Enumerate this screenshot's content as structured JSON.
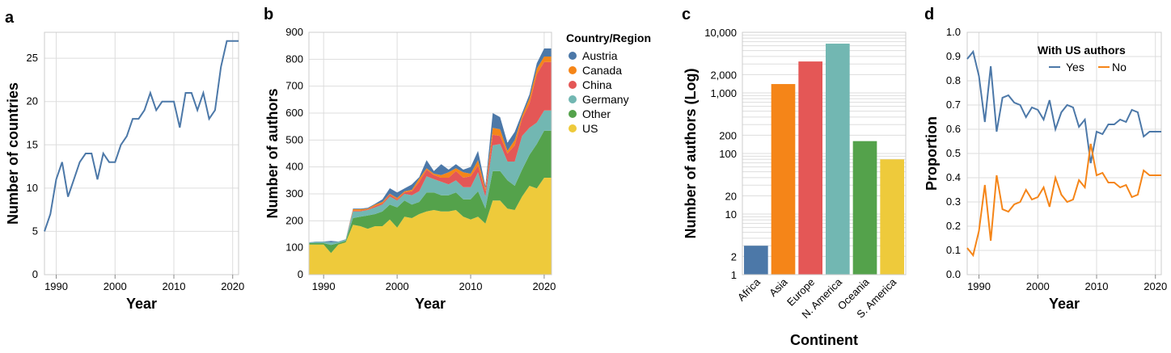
{
  "colors": {
    "Austria": "#4c78a8",
    "Canada": "#f58518",
    "China": "#e45756",
    "Germany": "#72b7b2",
    "Other": "#54a24b",
    "US": "#eeca3b",
    "Africa": "#4c78a8",
    "Asia": "#f58518",
    "Europe": "#e45756",
    "N. America": "#72b7b2",
    "Oceania": "#54a24b",
    "S. America": "#eeca3b",
    "Yes": "#4c78a8",
    "No": "#f58518"
  },
  "chart_data": [
    {
      "panel": "a",
      "type": "line",
      "xlabel": "Year",
      "ylabel": "Number of countries",
      "xlim": [
        1988,
        2021
      ],
      "ylim": [
        0,
        28
      ],
      "xticks": [
        1990,
        2000,
        2010,
        2020
      ],
      "yticks": [
        0,
        5,
        10,
        15,
        20,
        25
      ],
      "x": [
        1988,
        1989,
        1990,
        1991,
        1992,
        1993,
        1994,
        1995,
        1996,
        1997,
        1998,
        1999,
        2000,
        2001,
        2002,
        2003,
        2004,
        2005,
        2006,
        2007,
        2008,
        2009,
        2010,
        2011,
        2012,
        2013,
        2014,
        2015,
        2016,
        2017,
        2018,
        2019,
        2020,
        2021
      ],
      "values": [
        5,
        7,
        11,
        13,
        9,
        11,
        13,
        14,
        14,
        11,
        14,
        13,
        13,
        15,
        16,
        18,
        18,
        19,
        21,
        19,
        20,
        20,
        20,
        17,
        21,
        21,
        19,
        21,
        18,
        19,
        24,
        27,
        27,
        27
      ]
    },
    {
      "panel": "b",
      "type": "area",
      "stacked": true,
      "xlabel": "Year",
      "ylabel": "Number of authors",
      "xlim": [
        1988,
        2021
      ],
      "ylim": [
        0,
        900
      ],
      "xticks": [
        1990,
        2000,
        2010,
        2020
      ],
      "yticks": [
        0,
        100,
        200,
        300,
        400,
        500,
        600,
        700,
        800,
        900
      ],
      "legend_title": "Country/Region",
      "legend_position": "top-right",
      "x": [
        1988,
        1989,
        1990,
        1991,
        1992,
        1993,
        1994,
        1995,
        1996,
        1997,
        1998,
        1999,
        2000,
        2001,
        2002,
        2003,
        2004,
        2005,
        2006,
        2007,
        2008,
        2009,
        2010,
        2011,
        2012,
        2013,
        2014,
        2015,
        2016,
        2017,
        2018,
        2019,
        2020,
        2021
      ],
      "series": [
        {
          "name": "US",
          "values": [
            112,
            112,
            112,
            80,
            112,
            120,
            185,
            180,
            170,
            180,
            180,
            205,
            175,
            215,
            210,
            225,
            235,
            240,
            235,
            235,
            240,
            215,
            205,
            215,
            190,
            275,
            275,
            245,
            240,
            290,
            330,
            320,
            360,
            360
          ]
        },
        {
          "name": "Other",
          "values": [
            5,
            5,
            5,
            30,
            5,
            5,
            25,
            35,
            50,
            45,
            55,
            55,
            75,
            60,
            50,
            45,
            70,
            65,
            60,
            60,
            65,
            65,
            75,
            95,
            55,
            110,
            110,
            105,
            90,
            100,
            115,
            165,
            175,
            175
          ]
        },
        {
          "name": "Germany",
          "values": [
            2,
            5,
            5,
            10,
            5,
            5,
            25,
            20,
            20,
            25,
            25,
            30,
            25,
            25,
            35,
            40,
            60,
            50,
            50,
            40,
            45,
            45,
            45,
            70,
            45,
            95,
            100,
            70,
            90,
            125,
            100,
            80,
            75,
            75
          ]
        },
        {
          "name": "China",
          "values": [
            0,
            0,
            0,
            0,
            0,
            0,
            3,
            3,
            2,
            5,
            5,
            8,
            5,
            5,
            15,
            35,
            25,
            15,
            15,
            25,
            35,
            35,
            40,
            25,
            20,
            40,
            30,
            30,
            60,
            65,
            90,
            180,
            180,
            180
          ]
        },
        {
          "name": "Canada",
          "values": [
            0,
            0,
            0,
            0,
            0,
            0,
            5,
            5,
            3,
            5,
            5,
            3,
            5,
            5,
            5,
            12,
            5,
            5,
            10,
            20,
            10,
            20,
            10,
            20,
            10,
            25,
            25,
            10,
            20,
            10,
            20,
            20,
            20,
            20
          ]
        },
        {
          "name": "Austria",
          "values": [
            1,
            1,
            1,
            5,
            1,
            1,
            2,
            2,
            3,
            3,
            10,
            20,
            20,
            10,
            20,
            5,
            30,
            10,
            40,
            10,
            15,
            10,
            25,
            35,
            10,
            55,
            45,
            30,
            30,
            10,
            15,
            20,
            30,
            30
          ]
        }
      ]
    },
    {
      "panel": "c",
      "type": "bar",
      "scale": "log",
      "xlabel": "Continent",
      "ylabel": "Number of authors (Log)",
      "ylim": [
        1,
        10000
      ],
      "ytick_labels": [
        "1",
        "2",
        "10",
        "20",
        "100",
        "200",
        "1,000",
        "2,000",
        "10,000"
      ],
      "categories": [
        "Africa",
        "Asia",
        "Europe",
        "N. America",
        "Oceania",
        "S. America"
      ],
      "values": [
        3,
        1400,
        3300,
        6500,
        160,
        80
      ]
    },
    {
      "panel": "d",
      "type": "line",
      "xlabel": "Year",
      "ylabel": "Proportion",
      "xlim": [
        1988,
        2021
      ],
      "ylim": [
        0,
        1
      ],
      "xticks": [
        1990,
        2000,
        2010,
        2020
      ],
      "yticks": [
        0.0,
        0.1,
        0.2,
        0.3,
        0.4,
        0.5,
        0.6,
        0.7,
        0.8,
        0.9,
        1.0
      ],
      "ytick_labels": [
        "0.0",
        "0.1",
        "0.2",
        "0.3",
        "0.4",
        "0.5",
        "0.6",
        "0.7",
        "0.8",
        "0.9",
        "1.0"
      ],
      "legend_title": "With US authors",
      "legend_position": "top-right",
      "x": [
        1988,
        1989,
        1990,
        1991,
        1992,
        1993,
        1994,
        1995,
        1996,
        1997,
        1998,
        1999,
        2000,
        2001,
        2002,
        2003,
        2004,
        2005,
        2006,
        2007,
        2008,
        2009,
        2010,
        2011,
        2012,
        2013,
        2014,
        2015,
        2016,
        2017,
        2018,
        2019,
        2020,
        2021
      ],
      "series": [
        {
          "name": "Yes",
          "values": [
            0.89,
            0.92,
            0.82,
            0.63,
            0.86,
            0.59,
            0.73,
            0.74,
            0.71,
            0.7,
            0.65,
            0.69,
            0.68,
            0.64,
            0.72,
            0.6,
            0.67,
            0.7,
            0.69,
            0.61,
            0.64,
            0.46,
            0.59,
            0.58,
            0.62,
            0.62,
            0.64,
            0.63,
            0.68,
            0.67,
            0.57,
            0.59,
            0.59,
            0.59
          ]
        },
        {
          "name": "No",
          "values": [
            0.11,
            0.08,
            0.18,
            0.37,
            0.14,
            0.41,
            0.27,
            0.26,
            0.29,
            0.3,
            0.35,
            0.31,
            0.32,
            0.36,
            0.28,
            0.4,
            0.33,
            0.3,
            0.31,
            0.39,
            0.36,
            0.54,
            0.41,
            0.42,
            0.38,
            0.38,
            0.36,
            0.37,
            0.32,
            0.33,
            0.43,
            0.41,
            0.41,
            0.41
          ]
        }
      ]
    }
  ]
}
